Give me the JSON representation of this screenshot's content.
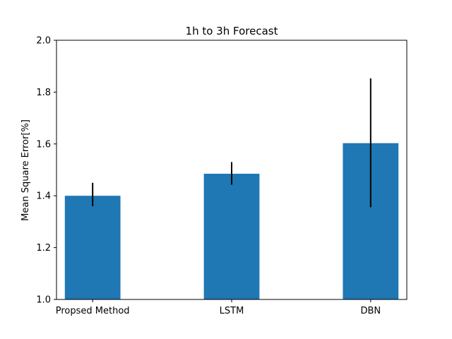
{
  "chart_data": {
    "type": "bar",
    "title": "1h to 3h Forecast",
    "xlabel": "",
    "ylabel": "Mean Square Error[%]",
    "categories": [
      "Propsed Method",
      "LSTM",
      "DBN"
    ],
    "values": [
      1.4,
      1.485,
      1.603
    ],
    "error_low": [
      1.36,
      1.443,
      1.356
    ],
    "error_high": [
      1.45,
      1.53,
      1.853
    ],
    "ylim": [
      1.0,
      2.0
    ],
    "yticks": [
      1.0,
      1.2,
      1.4,
      1.6,
      1.8,
      2.0
    ],
    "ytick_labels": [
      "1.0",
      "1.2",
      "1.4",
      "1.6",
      "1.8",
      "2.0"
    ],
    "grid": false,
    "legend": "none",
    "bar_color": "#1f77b4",
    "error_color": "#000000"
  }
}
